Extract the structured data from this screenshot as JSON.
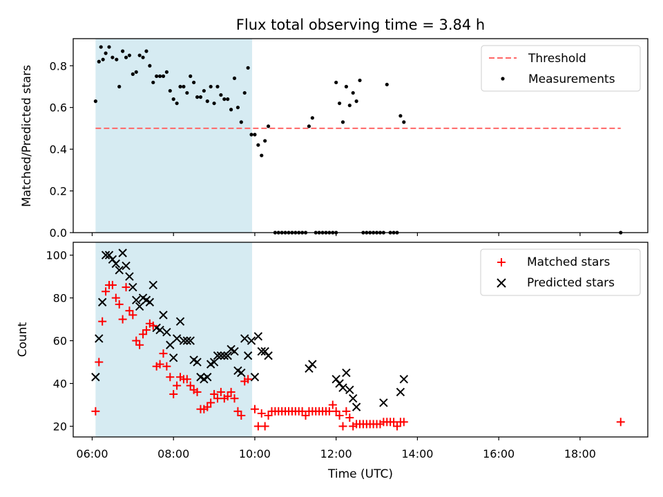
{
  "colors": {
    "shade": "#add8e6",
    "threshold": "#ff6666",
    "measurement": "#000000",
    "matched": "#ff0000",
    "predicted": "#000000"
  },
  "chart_data": [
    {
      "type": "scatter",
      "title": "Flux total observing time = 3.84 h",
      "ylabel": "Matched/Predicted stars",
      "xlabel": "",
      "xlim": [
        "05:32",
        "19:40"
      ],
      "ylim": [
        0,
        0.93
      ],
      "yticks": [
        0.0,
        0.2,
        0.4,
        0.6,
        0.8
      ],
      "ytick_labels": [
        "0.0",
        "0.2",
        "0.4",
        "0.6",
        "0.8"
      ],
      "xticks": [
        "06:00",
        "08:00",
        "10:00",
        "12:00",
        "14:00",
        "16:00",
        "18:00"
      ],
      "grid": false,
      "legend": {
        "position": "top-right",
        "entries": [
          "Threshold",
          "Measurements"
        ]
      },
      "shaded_interval": [
        "06:05",
        "09:56"
      ],
      "threshold": {
        "name": "Threshold",
        "y": 0.5,
        "x_start": "06:05",
        "x_end": "19:00"
      },
      "measurements": {
        "name": "Measurements",
        "points": [
          [
            "06:05",
            0.63
          ],
          [
            "06:10",
            0.82
          ],
          [
            "06:13",
            0.89
          ],
          [
            "06:16",
            0.83
          ],
          [
            "06:20",
            0.86
          ],
          [
            "06:25",
            0.89
          ],
          [
            "06:30",
            0.84
          ],
          [
            "06:36",
            0.83
          ],
          [
            "06:40",
            0.7
          ],
          [
            "06:45",
            0.87
          ],
          [
            "06:50",
            0.84
          ],
          [
            "06:55",
            0.85
          ],
          [
            "07:00",
            0.76
          ],
          [
            "07:05",
            0.77
          ],
          [
            "07:10",
            0.85
          ],
          [
            "07:15",
            0.84
          ],
          [
            "07:20",
            0.87
          ],
          [
            "07:25",
            0.8
          ],
          [
            "07:30",
            0.72
          ],
          [
            "07:35",
            0.75
          ],
          [
            "07:40",
            0.75
          ],
          [
            "07:45",
            0.75
          ],
          [
            "07:50",
            0.77
          ],
          [
            "07:55",
            0.68
          ],
          [
            "08:00",
            0.64
          ],
          [
            "08:05",
            0.62
          ],
          [
            "08:10",
            0.7
          ],
          [
            "08:15",
            0.7
          ],
          [
            "08:20",
            0.67
          ],
          [
            "08:25",
            0.75
          ],
          [
            "08:30",
            0.72
          ],
          [
            "08:35",
            0.65
          ],
          [
            "08:40",
            0.65
          ],
          [
            "08:45",
            0.68
          ],
          [
            "08:50",
            0.63
          ],
          [
            "08:55",
            0.7
          ],
          [
            "09:00",
            0.62
          ],
          [
            "09:05",
            0.7
          ],
          [
            "09:10",
            0.66
          ],
          [
            "09:15",
            0.64
          ],
          [
            "09:20",
            0.64
          ],
          [
            "09:25",
            0.59
          ],
          [
            "09:30",
            0.74
          ],
          [
            "09:35",
            0.6
          ],
          [
            "09:40",
            0.53
          ],
          [
            "09:45",
            0.67
          ],
          [
            "09:50",
            0.79
          ],
          [
            "09:55",
            0.47
          ],
          [
            "10:00",
            0.47
          ],
          [
            "10:05",
            0.42
          ],
          [
            "10:10",
            0.37
          ],
          [
            "10:15",
            0.44
          ],
          [
            "10:20",
            0.51
          ],
          [
            "10:30",
            0.0
          ],
          [
            "10:35",
            0.0
          ],
          [
            "10:40",
            0.0
          ],
          [
            "10:45",
            0.0
          ],
          [
            "10:50",
            0.0
          ],
          [
            "10:55",
            0.0
          ],
          [
            "11:00",
            0.0
          ],
          [
            "11:05",
            0.0
          ],
          [
            "11:10",
            0.0
          ],
          [
            "11:15",
            0.0
          ],
          [
            "11:20",
            0.51
          ],
          [
            "11:25",
            0.55
          ],
          [
            "11:30",
            0.0
          ],
          [
            "11:35",
            0.0
          ],
          [
            "11:40",
            0.0
          ],
          [
            "11:45",
            0.0
          ],
          [
            "11:50",
            0.0
          ],
          [
            "11:55",
            0.0
          ],
          [
            "12:00",
            0.72
          ],
          [
            "12:00",
            0.0
          ],
          [
            "12:05",
            0.62
          ],
          [
            "12:10",
            0.53
          ],
          [
            "12:15",
            0.7
          ],
          [
            "12:20",
            0.61
          ],
          [
            "12:25",
            0.67
          ],
          [
            "12:30",
            0.63
          ],
          [
            "12:35",
            0.73
          ],
          [
            "12:40",
            0.0
          ],
          [
            "12:45",
            0.0
          ],
          [
            "12:50",
            0.0
          ],
          [
            "12:55",
            0.0
          ],
          [
            "13:00",
            0.0
          ],
          [
            "13:05",
            0.0
          ],
          [
            "13:10",
            0.0
          ],
          [
            "13:15",
            0.71
          ],
          [
            "13:20",
            0.0
          ],
          [
            "13:25",
            0.0
          ],
          [
            "13:30",
            0.0
          ],
          [
            "13:35",
            0.56
          ],
          [
            "13:40",
            0.53
          ],
          [
            "19:00",
            0.0
          ]
        ]
      }
    },
    {
      "type": "scatter",
      "title": "",
      "ylabel": "Count",
      "xlabel": "Time (UTC)",
      "xlim": [
        "05:32",
        "19:40"
      ],
      "ylim": [
        15,
        106
      ],
      "yticks": [
        20,
        40,
        60,
        80,
        100
      ],
      "ytick_labels": [
        "20",
        "40",
        "60",
        "80",
        "100"
      ],
      "xticks": [
        "06:00",
        "08:00",
        "10:00",
        "12:00",
        "14:00",
        "16:00",
        "18:00"
      ],
      "xtick_labels": [
        "06:00",
        "08:00",
        "10:00",
        "12:00",
        "14:00",
        "16:00",
        "18:00"
      ],
      "grid": false,
      "legend": {
        "position": "top-right",
        "entries": [
          "Matched stars",
          "Predicted stars"
        ]
      },
      "shaded_interval": [
        "06:05",
        "09:56"
      ],
      "series": [
        {
          "name": "Matched stars",
          "marker": "+",
          "points": [
            [
              "06:05",
              27
            ],
            [
              "06:10",
              50
            ],
            [
              "06:15",
              69
            ],
            [
              "06:20",
              83
            ],
            [
              "06:25",
              86
            ],
            [
              "06:30",
              86
            ],
            [
              "06:35",
              80
            ],
            [
              "06:40",
              77
            ],
            [
              "06:45",
              70
            ],
            [
              "06:50",
              85
            ],
            [
              "06:55",
              74
            ],
            [
              "07:00",
              72
            ],
            [
              "07:05",
              60
            ],
            [
              "07:10",
              58
            ],
            [
              "07:15",
              63
            ],
            [
              "07:20",
              65
            ],
            [
              "07:25",
              68
            ],
            [
              "07:30",
              67
            ],
            [
              "07:35",
              48
            ],
            [
              "07:40",
              49
            ],
            [
              "07:45",
              54
            ],
            [
              "07:50",
              48
            ],
            [
              "07:55",
              43
            ],
            [
              "08:00",
              35
            ],
            [
              "08:05",
              39
            ],
            [
              "08:10",
              43
            ],
            [
              "08:15",
              42
            ],
            [
              "08:20",
              42
            ],
            [
              "08:25",
              39
            ],
            [
              "08:30",
              37
            ],
            [
              "08:35",
              36
            ],
            [
              "08:40",
              28
            ],
            [
              "08:45",
              28
            ],
            [
              "08:50",
              29
            ],
            [
              "08:55",
              31
            ],
            [
              "09:00",
              35
            ],
            [
              "09:05",
              33
            ],
            [
              "09:10",
              36
            ],
            [
              "09:15",
              33
            ],
            [
              "09:20",
              34
            ],
            [
              "09:25",
              36
            ],
            [
              "09:30",
              33
            ],
            [
              "09:35",
              27
            ],
            [
              "09:40",
              25
            ],
            [
              "09:45",
              41
            ],
            [
              "09:50",
              42
            ],
            [
              "10:00",
              28
            ],
            [
              "10:05",
              20
            ],
            [
              "10:10",
              26
            ],
            [
              "10:15",
              20
            ],
            [
              "10:20",
              25
            ],
            [
              "10:25",
              27
            ],
            [
              "10:30",
              27
            ],
            [
              "10:35",
              27
            ],
            [
              "10:40",
              27
            ],
            [
              "10:45",
              27
            ],
            [
              "10:50",
              27
            ],
            [
              "10:55",
              27
            ],
            [
              "11:00",
              27
            ],
            [
              "11:05",
              27
            ],
            [
              "11:10",
              27
            ],
            [
              "11:15",
              25
            ],
            [
              "11:20",
              27
            ],
            [
              "11:25",
              27
            ],
            [
              "11:30",
              27
            ],
            [
              "11:35",
              27
            ],
            [
              "11:40",
              27
            ],
            [
              "11:45",
              27
            ],
            [
              "11:50",
              27
            ],
            [
              "11:55",
              30
            ],
            [
              "12:00",
              27
            ],
            [
              "12:05",
              25
            ],
            [
              "12:10",
              20
            ],
            [
              "12:15",
              27
            ],
            [
              "12:20",
              24
            ],
            [
              "12:25",
              20
            ],
            [
              "12:30",
              21
            ],
            [
              "12:35",
              21
            ],
            [
              "12:40",
              21
            ],
            [
              "12:45",
              21
            ],
            [
              "12:50",
              21
            ],
            [
              "12:55",
              21
            ],
            [
              "13:00",
              21
            ],
            [
              "13:05",
              21
            ],
            [
              "13:10",
              22
            ],
            [
              "13:15",
              22
            ],
            [
              "13:20",
              22
            ],
            [
              "13:25",
              22
            ],
            [
              "13:30",
              20
            ],
            [
              "13:35",
              22
            ],
            [
              "13:40",
              22
            ],
            [
              "19:00",
              22
            ]
          ]
        },
        {
          "name": "Predicted stars",
          "marker": "x",
          "points": [
            [
              "06:05",
              43
            ],
            [
              "06:10",
              61
            ],
            [
              "06:15",
              78
            ],
            [
              "06:20",
              100
            ],
            [
              "06:25",
              100
            ],
            [
              "06:30",
              98
            ],
            [
              "06:35",
              96
            ],
            [
              "06:40",
              93
            ],
            [
              "06:45",
              101
            ],
            [
              "06:50",
              95
            ],
            [
              "06:55",
              90
            ],
            [
              "07:00",
              85
            ],
            [
              "07:05",
              79
            ],
            [
              "07:10",
              76
            ],
            [
              "07:15",
              80
            ],
            [
              "07:20",
              79
            ],
            [
              "07:25",
              78
            ],
            [
              "07:30",
              86
            ],
            [
              "07:35",
              66
            ],
            [
              "07:40",
              65
            ],
            [
              "07:45",
              72
            ],
            [
              "07:50",
              64
            ],
            [
              "07:55",
              58
            ],
            [
              "08:00",
              52
            ],
            [
              "08:05",
              61
            ],
            [
              "08:10",
              69
            ],
            [
              "08:15",
              60
            ],
            [
              "08:20",
              60
            ],
            [
              "08:25",
              60
            ],
            [
              "08:30",
              51
            ],
            [
              "08:35",
              50
            ],
            [
              "08:40",
              43
            ],
            [
              "08:45",
              42
            ],
            [
              "08:50",
              43
            ],
            [
              "08:55",
              49
            ],
            [
              "09:00",
              50
            ],
            [
              "09:05",
              53
            ],
            [
              "09:10",
              53
            ],
            [
              "09:15",
              53
            ],
            [
              "09:20",
              53
            ],
            [
              "09:25",
              56
            ],
            [
              "09:30",
              55
            ],
            [
              "09:35",
              46
            ],
            [
              "09:40",
              45
            ],
            [
              "09:45",
              61
            ],
            [
              "09:50",
              53
            ],
            [
              "09:55",
              60
            ],
            [
              "10:00",
              43
            ],
            [
              "10:05",
              62
            ],
            [
              "10:10",
              55
            ],
            [
              "10:15",
              55
            ],
            [
              "10:20",
              53
            ],
            [
              "11:20",
              47
            ],
            [
              "11:25",
              49
            ],
            [
              "12:00",
              42
            ],
            [
              "12:05",
              40
            ],
            [
              "12:10",
              38
            ],
            [
              "12:15",
              45
            ],
            [
              "12:20",
              37
            ],
            [
              "12:25",
              33
            ],
            [
              "12:30",
              29
            ],
            [
              "13:10",
              31
            ],
            [
              "13:35",
              36
            ],
            [
              "13:40",
              42
            ]
          ]
        }
      ]
    }
  ]
}
